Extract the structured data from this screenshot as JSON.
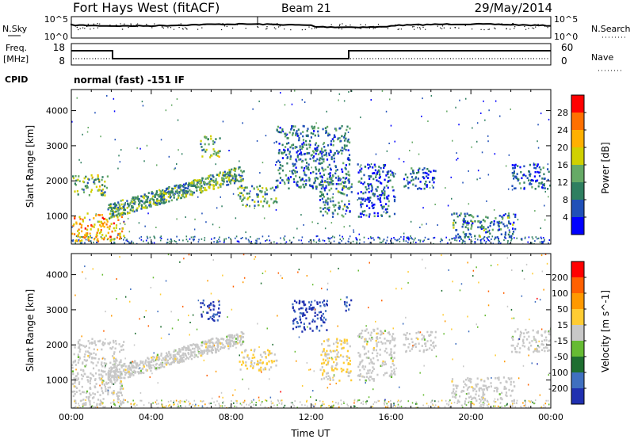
{
  "header": {
    "title": "Fort Hays West (fitACF)",
    "beam": "Beam 21",
    "date": "29/May/2014"
  },
  "top_panels": {
    "nsky": {
      "label": "N.Sky",
      "ticks": [
        "10^5",
        "10^0"
      ]
    },
    "nsearch": {
      "label": "N.Search",
      "ticks": [
        "10^5",
        "10^0"
      ]
    },
    "freq": {
      "label": "Freq.",
      "unit": "[MHz]",
      "ticks": [
        "18",
        "8"
      ]
    },
    "nave": {
      "label": "Nave",
      "ticks": [
        "60",
        "0"
      ]
    },
    "cpid": {
      "label": "CPID",
      "text": "normal (fast) -151 IF"
    }
  },
  "chart_data": [
    {
      "type": "heatmap",
      "name": "Power",
      "xlabel": "Time UT",
      "ylabel": "Slant Range [km]",
      "xlim": [
        0,
        24
      ],
      "ylim": [
        200,
        4600
      ],
      "x_ticks": [
        "00:00",
        "04:00",
        "08:00",
        "12:00",
        "16:00",
        "20:00",
        "00:00"
      ],
      "y_ticks": [
        "1000",
        "2000",
        "3000",
        "4000"
      ],
      "colorbar": {
        "label": "Power [dB]",
        "ticks": [
          "4",
          "8",
          "12",
          "16",
          "20",
          "24",
          "28"
        ],
        "colors": [
          "#0000ff",
          "#2050b8",
          "#2f7f60",
          "#66aa66",
          "#d0d000",
          "#ffb000",
          "#ff7000",
          "#ff0000"
        ],
        "range": [
          0,
          32
        ]
      },
      "regions": [
        {
          "t0": 0.0,
          "t1": 1.8,
          "r0": 1600,
          "r1": 2200,
          "level": 14
        },
        {
          "t0": 0.0,
          "t1": 2.6,
          "r0": 300,
          "r1": 1100,
          "level": 22
        },
        {
          "t0": 1.8,
          "t1": 8.6,
          "r0": 1000,
          "r1": 2300,
          "level": 12
        },
        {
          "t0": 6.4,
          "t1": 7.4,
          "r0": 2700,
          "r1": 3300,
          "level": 14
        },
        {
          "t0": 8.3,
          "t1": 10.3,
          "r0": 1300,
          "r1": 1900,
          "level": 12
        },
        {
          "t0": 10.2,
          "t1": 13.9,
          "r0": 1800,
          "r1": 3600,
          "level": 8
        },
        {
          "t0": 12.4,
          "t1": 14.0,
          "r0": 1000,
          "r1": 2200,
          "level": 10
        },
        {
          "t0": 14.3,
          "t1": 16.2,
          "r0": 1000,
          "r1": 2500,
          "level": 6
        },
        {
          "t0": 16.6,
          "t1": 18.2,
          "r0": 1800,
          "r1": 2400,
          "level": 6
        },
        {
          "t0": 19.0,
          "t1": 22.2,
          "r0": 400,
          "r1": 1100,
          "level": 10
        },
        {
          "t0": 22.0,
          "t1": 24.0,
          "r0": 1800,
          "r1": 2500,
          "level": 6
        }
      ]
    },
    {
      "type": "heatmap",
      "name": "Velocity",
      "xlabel": "Time UT",
      "ylabel": "Slant Range [km]",
      "xlim": [
        0,
        24
      ],
      "ylim": [
        200,
        4600
      ],
      "x_ticks": [
        "00:00",
        "04:00",
        "08:00",
        "12:00",
        "16:00",
        "20:00",
        "00:00"
      ],
      "y_ticks": [
        "1000",
        "2000",
        "3000",
        "4000"
      ],
      "colorbar": {
        "label": "Velocity [m s^-1]",
        "ticks": [
          "200",
          "100",
          "50",
          "15",
          "-15",
          "-50",
          "-100",
          "-200"
        ],
        "colors": [
          "#2030b0",
          "#4070c0",
          "#1e6e30",
          "#66bb33",
          "#c8c8c8",
          "#ffcc33",
          "#ff9900",
          "#ff6000",
          "#ff0000"
        ],
        "range": [
          -250,
          250
        ]
      },
      "regions": [
        {
          "t0": 0.0,
          "t1": 2.6,
          "r0": 300,
          "r1": 2200,
          "level": 0
        },
        {
          "t0": 1.8,
          "t1": 8.6,
          "r0": 1000,
          "r1": 2300,
          "level": 0
        },
        {
          "t0": 6.4,
          "t1": 7.4,
          "r0": 2700,
          "r1": 3300,
          "level": -200
        },
        {
          "t0": 8.3,
          "t1": 10.3,
          "r0": 1300,
          "r1": 1900,
          "level": 30
        },
        {
          "t0": 11.0,
          "t1": 12.8,
          "r0": 2400,
          "r1": 3300,
          "level": -200
        },
        {
          "t0": 13.6,
          "t1": 14.0,
          "r0": 3000,
          "r1": 3400,
          "level": -200
        },
        {
          "t0": 12.4,
          "t1": 14.0,
          "r0": 1000,
          "r1": 2200,
          "level": 30
        },
        {
          "t0": 14.3,
          "t1": 16.2,
          "r0": 1000,
          "r1": 2500,
          "level": 0
        },
        {
          "t0": 16.6,
          "t1": 18.2,
          "r0": 1800,
          "r1": 2400,
          "level": 0
        },
        {
          "t0": 19.0,
          "t1": 22.2,
          "r0": 400,
          "r1": 1100,
          "level": 0
        },
        {
          "t0": 22.0,
          "t1": 24.0,
          "r0": 1800,
          "r1": 2500,
          "level": 0
        }
      ]
    }
  ]
}
